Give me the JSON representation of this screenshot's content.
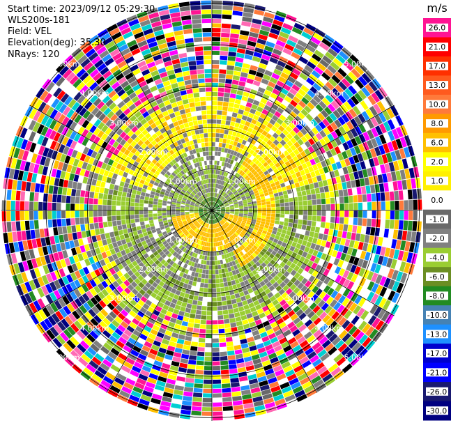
{
  "info": {
    "start_time": "Start time: 2023/09/12 05:29:30",
    "instrument": "WLS200s-181",
    "field": "Field: VEL",
    "elevation": "Elevation(deg): 35.30",
    "nrays": "NRays: 120"
  },
  "colorbar": {
    "unit": "m/s",
    "ticks": [
      "26.0",
      "21.0",
      "17.0",
      "13.0",
      "10.0",
      "8.0",
      "6.0",
      "2.0",
      "1.0",
      "0.0",
      "-1.0",
      "-2.0",
      "-4.0",
      "-6.0",
      "-8.0",
      "-10.0",
      "-13.0",
      "-17.0",
      "-21.0",
      "-26.0",
      "-30.0"
    ],
    "colors": [
      "#ff1493",
      "#ff0000",
      "#ff3000",
      "#ff5a1e",
      "#ff7a3a",
      "#ff9a00",
      "#ffc000",
      "#ffff00",
      "#fff000",
      "#ffffff",
      "#696969",
      "#808080",
      "#9acd32",
      "#6b8e23",
      "#228b22",
      "#4682b4",
      "#1e90ff",
      "#0000cd",
      "#0000ff",
      "#191970",
      "#000080",
      "#00004a"
    ]
  },
  "chart_data": {
    "type": "heatmap",
    "field": "VEL",
    "unit": "m/s",
    "rays": 120,
    "range_ring_labels": [
      "1.00km",
      "2.00km",
      "3.00km",
      "4.00km",
      "5.00km"
    ],
    "range_rings_km": [
      1,
      2,
      3,
      4,
      5
    ],
    "value_range": [
      -30,
      26
    ]
  }
}
